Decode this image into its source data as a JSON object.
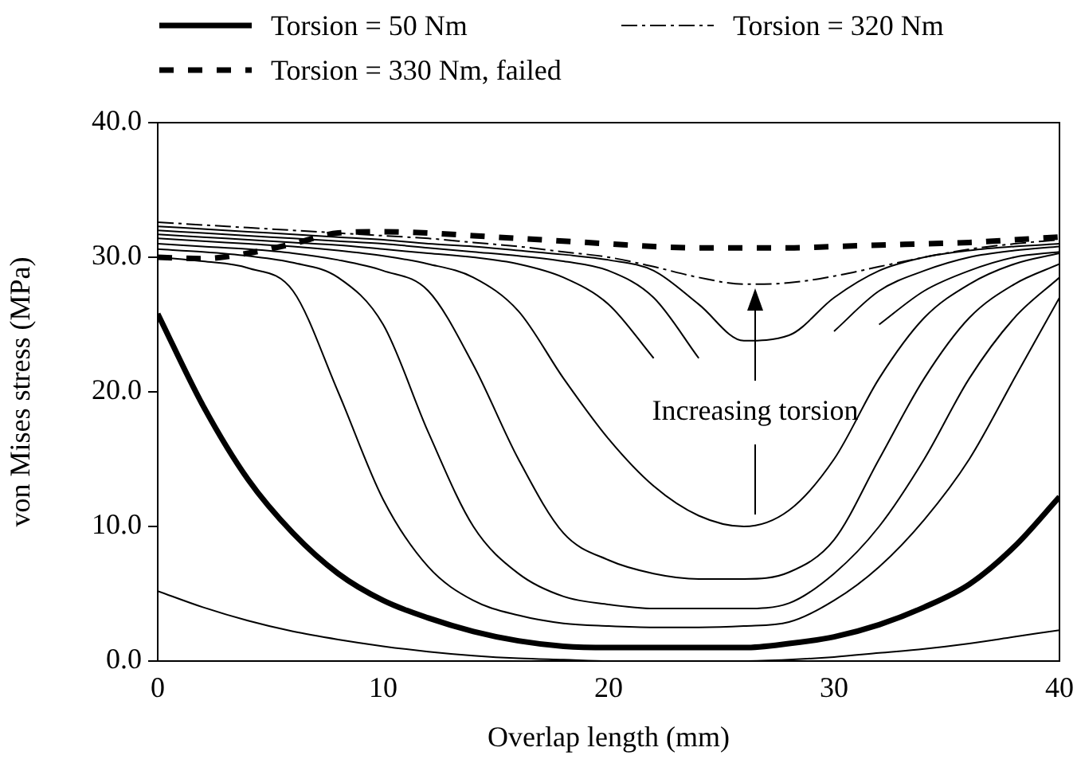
{
  "chart_data": {
    "type": "line",
    "xlabel": "Overlap length (mm)",
    "ylabel": "von Mises stress (MPa)",
    "x": [
      0,
      2,
      4,
      6,
      8,
      10,
      12,
      14,
      16,
      18,
      20,
      22,
      24,
      26,
      28,
      30,
      32,
      34,
      36,
      38,
      40
    ],
    "xlim": [
      0,
      40
    ],
    "xticks": [
      0,
      10,
      20,
      30,
      40
    ],
    "ylim": [
      0,
      40
    ],
    "yticks": [
      {
        "value": 0,
        "label": "0.0"
      },
      {
        "value": 10,
        "label": "10.0"
      },
      {
        "value": 20,
        "label": "20.0"
      },
      {
        "value": 30,
        "label": "30.0"
      },
      {
        "value": 40,
        "label": "40.0"
      }
    ],
    "grid": false,
    "legend": "top",
    "marker": "none",
    "annotations": [
      "Increasing torsion"
    ],
    "series": [
      {
        "name": "Torsion = 50 Nm",
        "color": "#000000",
        "line_style": "solid",
        "values": [
          25.8,
          19,
          13.5,
          9.5,
          6.5,
          4.5,
          3.2,
          2.2,
          1.5,
          1.1,
          1.0,
          1.0,
          1.0,
          1.0,
          1.3,
          1.8,
          2.7,
          4.0,
          5.7,
          8.5,
          12.2
        ]
      },
      {
        "name": "Torsion = 320 Nm",
        "color": "#000000",
        "line_style": "dashdot",
        "values": [
          32.6,
          32.4,
          32.2,
          32,
          31.8,
          31.6,
          31.4,
          31.1,
          30.8,
          30.4,
          30,
          29.3,
          28.5,
          28.0,
          28.1,
          28.6,
          29.3,
          30,
          30.6,
          31,
          31.3
        ]
      },
      {
        "name": "Torsion = 330 Nm, failed",
        "color": "#000000",
        "line_style": "dashed",
        "values": [
          30.0,
          29.9,
          30.3,
          31,
          31.8,
          31.9,
          31.8,
          31.6,
          31.4,
          31.2,
          31.0,
          30.8,
          30.7,
          30.7,
          30.7,
          30.8,
          30.9,
          31.0,
          31.1,
          31.3,
          31.5
        ]
      },
      {
        "color": "#000000",
        "line_style": "solid",
        "values": [
          5.2,
          4.0,
          3.0,
          2.2,
          1.6,
          1.1,
          0.7,
          0.4,
          0.2,
          0.1,
          0,
          0,
          0,
          0,
          0.1,
          0.3,
          0.6,
          0.9,
          1.3,
          1.8,
          2.3
        ]
      },
      {
        "color": "#000000",
        "line_style": "solid",
        "values": [
          30.0,
          29.7,
          29.2,
          27.5,
          20,
          12,
          7,
          4.5,
          3.4,
          2.8,
          2.6,
          2.5,
          2.5,
          2.6,
          2.9,
          4.5,
          7,
          10.5,
          15,
          21,
          27
        ]
      },
      {
        "color": "#000000",
        "line_style": "solid",
        "values": [
          30.6,
          30.4,
          30.1,
          29.6,
          28.5,
          25,
          17,
          10,
          6.5,
          4.8,
          4.2,
          3.9,
          3.9,
          3.9,
          4.3,
          6.5,
          10,
          15,
          21,
          25.5,
          28.5
        ]
      },
      {
        "color": "#000000",
        "line_style": "solid",
        "values": [
          31.0,
          30.8,
          30.6,
          30.3,
          29.8,
          29,
          27.5,
          22,
          15,
          9.5,
          7.5,
          6.5,
          6.1,
          6.1,
          6.6,
          9,
          15,
          21,
          25.5,
          28,
          29.5
        ]
      },
      {
        "color": "#000000",
        "line_style": "solid",
        "values": [
          31.4,
          31.2,
          31.0,
          30.8,
          30.5,
          30.1,
          29.5,
          28.5,
          26,
          21,
          16.5,
          13,
          10.8,
          10,
          11.2,
          15,
          21,
          25.5,
          28,
          29.5,
          30.3
        ]
      },
      {
        "color": "#000000",
        "line_style": "solid",
        "values": [
          31.7,
          31.5,
          31.3,
          31.1,
          30.9,
          30.6,
          30.3,
          30,
          29.5,
          28.5,
          26.5,
          22.5,
          null,
          null,
          null,
          null,
          25,
          27.5,
          29,
          30,
          30.4
        ]
      },
      {
        "color": "#000000",
        "line_style": "solid",
        "values": [
          32.0,
          31.8,
          31.6,
          31.4,
          31.2,
          31,
          30.7,
          30.4,
          30.1,
          29.7,
          29,
          27,
          22.5,
          null,
          null,
          24.5,
          27.5,
          29,
          30,
          30.5,
          30.8
        ]
      },
      {
        "color": "#000000",
        "line_style": "solid",
        "values": [
          32.3,
          32.1,
          31.9,
          31.7,
          31.5,
          31.3,
          31,
          30.8,
          30.5,
          30.2,
          29.8,
          29,
          26.5,
          23.8,
          24.2,
          27,
          29,
          30,
          30.5,
          30.8,
          31
        ]
      }
    ]
  }
}
